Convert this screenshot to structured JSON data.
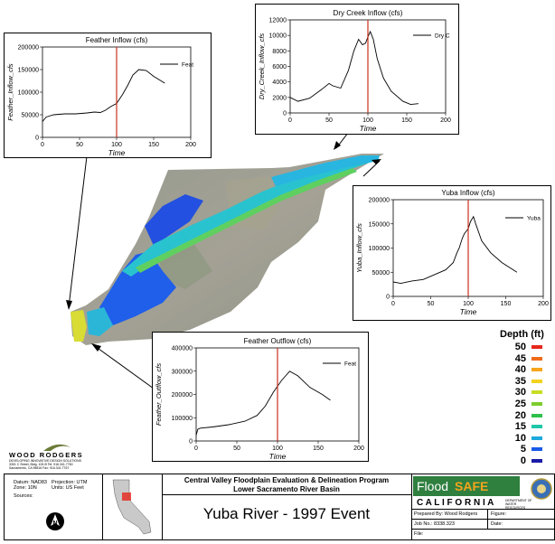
{
  "charts": {
    "feather_inflow": {
      "title": "Feather Inflow (cfs)",
      "xlabel": "Time",
      "ylabel": "Feather_Inflow_cfs",
      "legend": "Feat",
      "xticks": [
        "0",
        "50",
        "100",
        "150",
        "200"
      ],
      "yticks": [
        "0",
        "50000",
        "100000",
        "150000",
        "200000"
      ]
    },
    "dry_creek_inflow": {
      "title": "Dry Creek Inflow (cfs)",
      "xlabel": "Time",
      "ylabel": "Dry_Creek_Inflow_cfs",
      "legend": "Dry C",
      "xticks": [
        "0",
        "50",
        "100",
        "150",
        "200"
      ],
      "yticks": [
        "0",
        "2000",
        "4000",
        "6000",
        "8000",
        "10000",
        "12000"
      ]
    },
    "yuba_inflow": {
      "title": "Yuba Inflow (cfs)",
      "xlabel": "Time",
      "ylabel": "Yuba_Inflow_cfs",
      "legend": "Yuba",
      "xticks": [
        "0",
        "50",
        "100",
        "150",
        "200"
      ],
      "yticks": [
        "0",
        "50000",
        "100000",
        "150000",
        "200000"
      ]
    },
    "feather_outflow": {
      "title": "Feather Outflow (cfs)",
      "xlabel": "Time",
      "ylabel": "Feather_Outflow_cfs",
      "legend": "Feat",
      "xticks": [
        "0",
        "50",
        "100",
        "150",
        "200"
      ],
      "yticks": [
        "0",
        "100000",
        "200000",
        "300000",
        "400000"
      ]
    }
  },
  "chart_data": [
    {
      "type": "line",
      "title": "Feather Inflow (cfs)",
      "xlabel": "Time",
      "ylabel": "Feather_Inflow_cfs",
      "xlim": [
        0,
        200
      ],
      "ylim": [
        0,
        200000
      ],
      "marker_x": 100,
      "legend_position": "top-right",
      "series": [
        {
          "name": "Feat",
          "x": [
            0,
            5,
            15,
            30,
            45,
            60,
            70,
            78,
            85,
            92,
            100,
            108,
            115,
            122,
            130,
            140,
            150,
            160,
            165
          ],
          "y": [
            35000,
            45000,
            50000,
            52000,
            52000,
            54000,
            56000,
            55000,
            60000,
            68000,
            75000,
            95000,
            115000,
            138000,
            150000,
            148000,
            135000,
            125000,
            120000
          ]
        }
      ]
    },
    {
      "type": "line",
      "title": "Dry Creek Inflow (cfs)",
      "xlabel": "Time",
      "ylabel": "Dry_Creek_Inflow_cfs",
      "xlim": [
        0,
        200
      ],
      "ylim": [
        0,
        12000
      ],
      "marker_x": 100,
      "legend_position": "top-right",
      "series": [
        {
          "name": "Dry C",
          "x": [
            0,
            10,
            25,
            40,
            50,
            55,
            65,
            75,
            82,
            88,
            93,
            97,
            100,
            103,
            107,
            112,
            120,
            130,
            145,
            155,
            165
          ],
          "y": [
            2000,
            1500,
            1900,
            3000,
            3800,
            3500,
            3200,
            5500,
            8000,
            9500,
            8800,
            9000,
            9800,
            10500,
            9500,
            7000,
            4500,
            2800,
            1500,
            1100,
            1200
          ]
        }
      ]
    },
    {
      "type": "line",
      "title": "Yuba Inflow (cfs)",
      "xlabel": "Time",
      "ylabel": "Yuba_Inflow_cfs",
      "xlim": [
        0,
        200
      ],
      "ylim": [
        0,
        200000
      ],
      "marker_x": 100,
      "legend_position": "top-right",
      "series": [
        {
          "name": "Yuba",
          "x": [
            0,
            10,
            25,
            40,
            55,
            70,
            80,
            85,
            88,
            92,
            95,
            100,
            103,
            107,
            110,
            118,
            130,
            145,
            160,
            165
          ],
          "y": [
            30000,
            27000,
            32000,
            35000,
            45000,
            55000,
            70000,
            90000,
            100000,
            120000,
            130000,
            140000,
            155000,
            165000,
            150000,
            115000,
            90000,
            70000,
            55000,
            50000
          ]
        }
      ]
    },
    {
      "type": "line",
      "title": "Feather Outflow (cfs)",
      "xlabel": "Time",
      "ylabel": "Feather_Outflow_cfs",
      "xlim": [
        0,
        200
      ],
      "ylim": [
        0,
        400000
      ],
      "marker_x": 100,
      "legend_position": "top-right",
      "series": [
        {
          "name": "Feat",
          "x": [
            0,
            2,
            5,
            20,
            40,
            60,
            75,
            85,
            95,
            105,
            115,
            125,
            140,
            155,
            165
          ],
          "y": [
            25000,
            50000,
            55000,
            60000,
            70000,
            85000,
            110000,
            150000,
            210000,
            260000,
            300000,
            280000,
            230000,
            200000,
            175000
          ]
        }
      ]
    }
  ],
  "legend": {
    "title": "Depth (ft)",
    "items": [
      {
        "label": "50",
        "color": "#e6261b"
      },
      {
        "label": "45",
        "color": "#ef6b18"
      },
      {
        "label": "40",
        "color": "#f6a51c"
      },
      {
        "label": "35",
        "color": "#f2d21e"
      },
      {
        "label": "30",
        "color": "#c8dd21"
      },
      {
        "label": "25",
        "color": "#7ccd2c"
      },
      {
        "label": "20",
        "color": "#2fc04c"
      },
      {
        "label": "15",
        "color": "#1fc7a8"
      },
      {
        "label": "10",
        "color": "#1da9dd"
      },
      {
        "label": "5",
        "color": "#1a5ae8"
      },
      {
        "label": "0",
        "color": "#1a1aa6"
      }
    ]
  },
  "company": {
    "name": "WOOD RODGERS",
    "tagline": "DEVELOPING INNOVATIVE DESIGN SOLUTIONS",
    "address": "3301 C Street, Bldg. 100-B  Tel: 916.341.7760",
    "city": "Sacramento, CA 95816  Fax: 916.341.7767"
  },
  "title_block": {
    "datum": "Datum: NAD83",
    "zone": "Zone: 10N",
    "projection": "Projection: UTM",
    "units": "Units: US Feet",
    "sources": "Sources:",
    "program": "Central Valley Floodplain Evaluation & Delineation Program",
    "basin": "Lower Sacramento River Basin",
    "map_title": "Yuba River - 1997 Event",
    "floodsafe_flood": "Flood",
    "floodsafe_safe": "SAFE",
    "california": "C A L I F O R N I A",
    "dwr": "DEPARTMENT OF WATER RESOURCES",
    "prepared_by": "Prepared By: Wood Rodgers",
    "figure": "Figure:",
    "job_no": "Job No.: 8338.323",
    "date": "Date:",
    "file": "File:"
  }
}
